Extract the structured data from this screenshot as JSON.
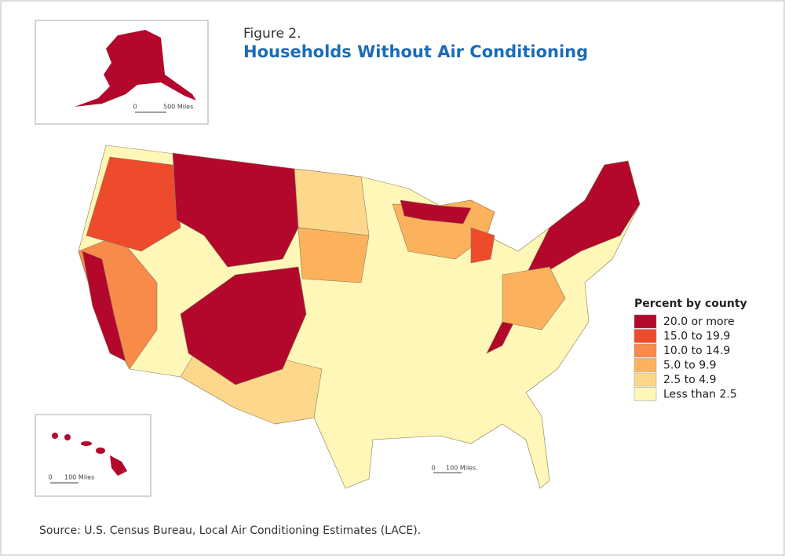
{
  "figure_label": "Figure 2.",
  "title": "Households Without Air Conditioning",
  "legend": {
    "title": "Percent by county",
    "items": [
      {
        "label": "20.0 or more",
        "color": "#b3082c"
      },
      {
        "label": "15.0 to 19.9",
        "color": "#ee4a2c"
      },
      {
        "label": "10.0 to 14.9",
        "color": "#f88b4a"
      },
      {
        "label": "5.0 to 9.9",
        "color": "#fcb25c"
      },
      {
        "label": "2.5 to 4.9",
        "color": "#fdd88c"
      },
      {
        "label": "Less than 2.5",
        "color": "#fff7b8"
      }
    ]
  },
  "alaska_scale": {
    "zero": "0",
    "label": "500 Miles"
  },
  "hawaii_scale": {
    "zero": "0",
    "label": "100 Miles"
  },
  "main_scale": {
    "zero": "0",
    "label": "100 Miles"
  },
  "source": "Source: U.S. Census Bureau, Local Air Conditioning Estimates (LACE)."
}
